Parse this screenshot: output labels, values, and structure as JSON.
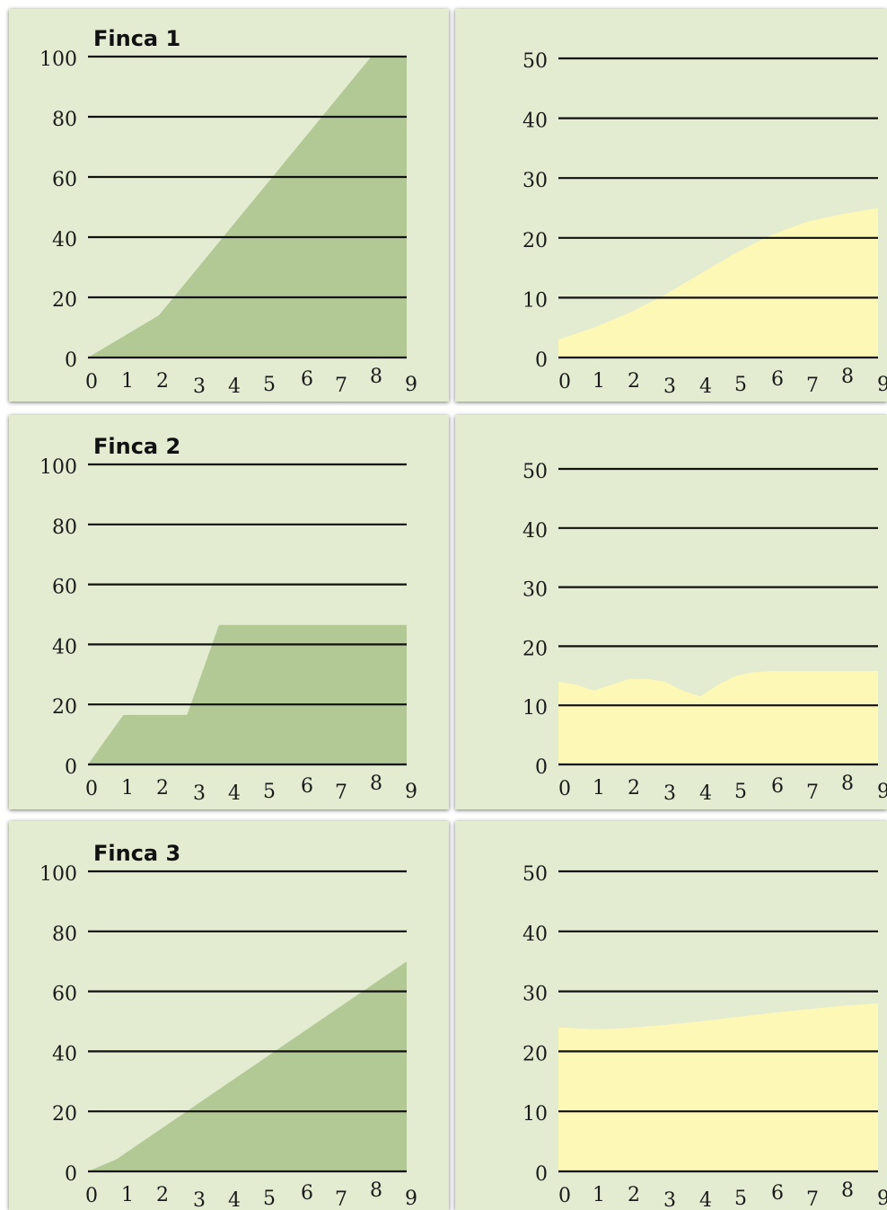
{
  "colors": {
    "panel_bg": "#e3ebd1",
    "left_fill": "#b3c995",
    "right_fill": "#fef8b7",
    "grid": "#111111"
  },
  "chart_data": [
    {
      "type": "area",
      "title": "Finca 1",
      "x": [
        0,
        2,
        8,
        9
      ],
      "values": [
        0,
        14,
        100,
        100
      ],
      "xticks": [
        "0",
        "1",
        "2",
        "3",
        "4",
        "5",
        "6",
        "7",
        "8",
        "9"
      ],
      "yticks": [
        "0",
        "20",
        "40",
        "60",
        "80",
        "100"
      ],
      "xlim": [
        0,
        9
      ],
      "ylim": [
        0,
        100
      ]
    },
    {
      "type": "area",
      "title": "",
      "x": [
        0,
        1,
        2,
        3,
        4,
        5,
        6,
        7,
        8,
        9
      ],
      "values": [
        3,
        5,
        7.5,
        10.5,
        14,
        17.5,
        20.5,
        22.7,
        24,
        25
      ],
      "xticks": [
        "0",
        "1",
        "2",
        "3",
        "4",
        "5",
        "6",
        "7",
        "8",
        "9"
      ],
      "yticks": [
        "0",
        "10",
        "20",
        "30",
        "40",
        "50"
      ],
      "xlim": [
        0,
        9
      ],
      "ylim": [
        0,
        50
      ]
    },
    {
      "type": "area",
      "title": "Finca 2",
      "x": [
        0,
        1,
        2.8,
        3.7,
        9
      ],
      "values": [
        0,
        16.5,
        16.5,
        46.5,
        46.5
      ],
      "xticks": [
        "0",
        "1",
        "2",
        "3",
        "4",
        "5",
        "6",
        "7",
        "8",
        "9"
      ],
      "yticks": [
        "0",
        "20",
        "40",
        "60",
        "80",
        "100"
      ],
      "xlim": [
        0,
        9
      ],
      "ylim": [
        0,
        100
      ]
    },
    {
      "type": "area",
      "title": "",
      "x": [
        0,
        0.5,
        1,
        1.5,
        2,
        2.5,
        3,
        3.5,
        4,
        4.5,
        5,
        5.5,
        6,
        7,
        8,
        9
      ],
      "values": [
        14,
        13.5,
        12.5,
        13.5,
        14.5,
        14.5,
        14,
        12.5,
        11.5,
        13.5,
        15,
        15.6,
        15.8,
        15.8,
        15.8,
        15.8
      ],
      "xticks": [
        "0",
        "1",
        "2",
        "3",
        "4",
        "5",
        "6",
        "7",
        "8",
        "9"
      ],
      "yticks": [
        "0",
        "10",
        "20",
        "30",
        "40",
        "50"
      ],
      "xlim": [
        0,
        9
      ],
      "ylim": [
        0,
        50
      ]
    },
    {
      "type": "area",
      "title": "Finca 3",
      "x": [
        0,
        0.8,
        9
      ],
      "values": [
        0,
        4,
        70
      ],
      "xticks": [
        "0",
        "1",
        "2",
        "3",
        "4",
        "5",
        "6",
        "7",
        "8",
        "9"
      ],
      "yticks": [
        "0",
        "20",
        "40",
        "60",
        "80",
        "100"
      ],
      "xlim": [
        0,
        9
      ],
      "ylim": [
        0,
        100
      ]
    },
    {
      "type": "area",
      "title": "",
      "x": [
        0,
        1,
        2,
        3,
        4,
        5,
        6,
        7,
        8,
        9
      ],
      "values": [
        24,
        23.7,
        23.9,
        24.4,
        25,
        25.7,
        26.4,
        27,
        27.6,
        28
      ],
      "xticks": [
        "0",
        "1",
        "2",
        "3",
        "4",
        "5",
        "6",
        "7",
        "8",
        "9"
      ],
      "yticks": [
        "0",
        "10",
        "20",
        "30",
        "40",
        "50"
      ],
      "xlim": [
        0,
        9
      ],
      "ylim": [
        0,
        50
      ]
    }
  ]
}
